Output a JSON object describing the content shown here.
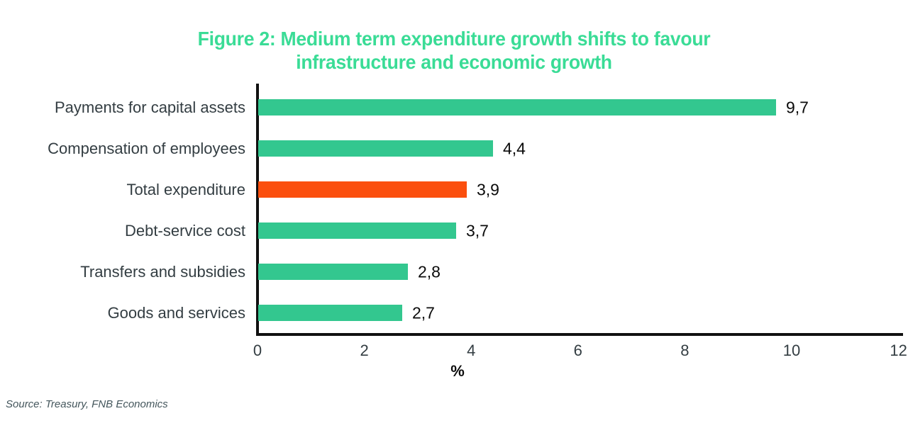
{
  "chart_data": {
    "type": "bar",
    "orientation": "horizontal",
    "title": "Figure 2: Medium term expenditure growth shifts to favour infrastructure and economic growth",
    "title_lines": [
      "Figure 2: Medium term expenditure growth shifts to favour",
      "infrastructure and economic growth"
    ],
    "categories": [
      "Payments for capital assets",
      "Compensation of employees",
      "Total expenditure",
      "Debt-service cost",
      "Transfers and subsidies",
      "Goods and services"
    ],
    "values": [
      9.7,
      4.4,
      3.9,
      3.7,
      2.8,
      2.7
    ],
    "value_labels": [
      "9,7",
      "4,4",
      "3,9",
      "3,7",
      "2,8",
      "2,7"
    ],
    "bar_colors": [
      "#33C78F",
      "#33C78F",
      "#FB4F0E",
      "#33C78F",
      "#33C78F",
      "#33C78F"
    ],
    "xlabel": "%",
    "xlim": [
      0,
      12
    ],
    "x_ticks": [
      "0",
      "2",
      "4",
      "6",
      "8",
      "10",
      "12"
    ],
    "grid": false,
    "legend": "none"
  },
  "colors": {
    "title": "#3ADC96",
    "bar_green": "#33C78F",
    "bar_highlight": "#FB4F0E",
    "axis": "#111111",
    "category_text": "#333D42",
    "tick_text": "#333D42",
    "value_text": "#0B0B0B",
    "source_text": "#44565C"
  },
  "source_note": "Source: Treasury, FNB Economics"
}
